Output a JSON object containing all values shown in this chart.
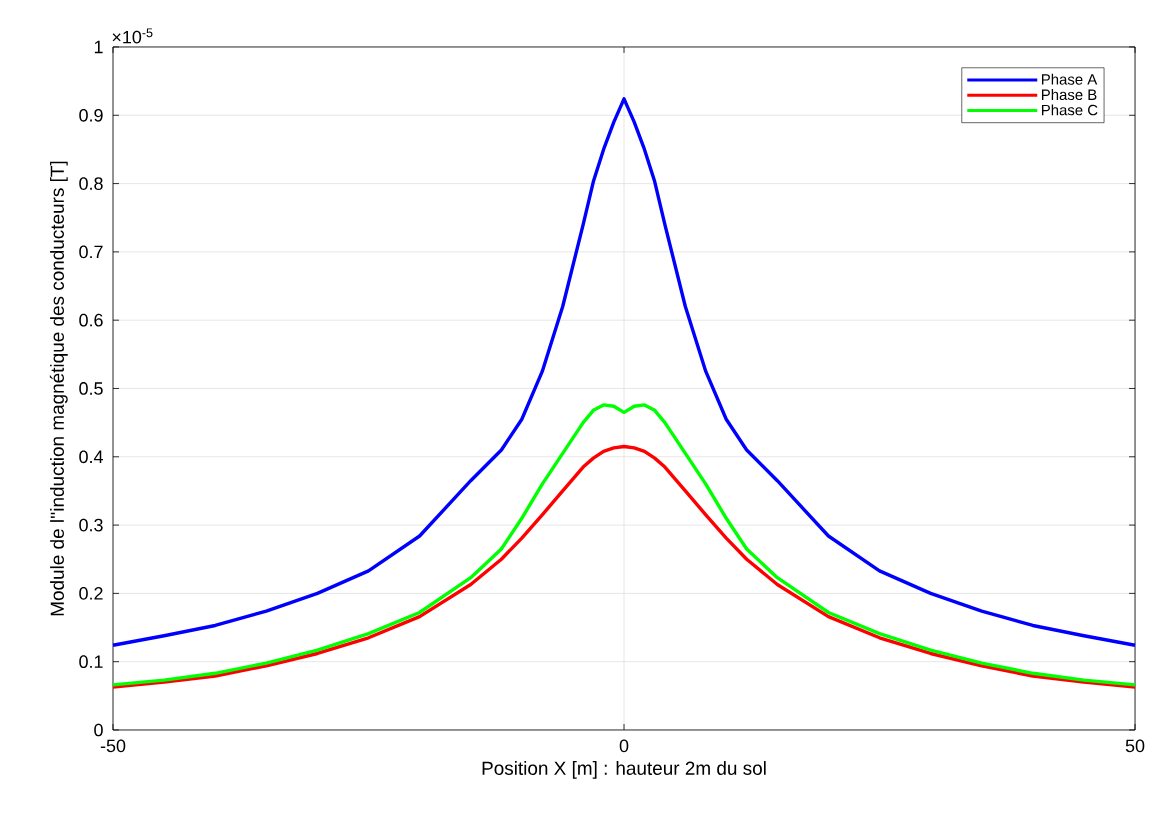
{
  "chart_data": {
    "type": "line",
    "xlabel": "Position X [m] : hauteur 2m du sol",
    "ylabel": "Module de l''induction magnétique des conducteurs [T]",
    "annotations": [
      "×10$^{-5}$"
    ],
    "x": [
      -50,
      -45,
      -40,
      -35,
      -30,
      -25,
      -20,
      -15,
      -12,
      -10,
      -8,
      -6,
      -4,
      -3,
      -2,
      -1,
      0,
      1,
      2,
      3,
      4,
      6,
      8,
      10,
      12,
      15,
      20,
      25,
      30,
      35,
      40,
      45,
      50
    ],
    "series": [
      {
        "name": "Phase A",
        "color": "#0000ff",
        "values": [
          0.124,
          0.138,
          0.153,
          0.174,
          0.2,
          0.233,
          0.284,
          0.365,
          0.41,
          0.455,
          0.525,
          0.62,
          0.74,
          0.803,
          0.85,
          0.89,
          0.924,
          0.89,
          0.85,
          0.803,
          0.74,
          0.62,
          0.525,
          0.455,
          0.41,
          0.365,
          0.284,
          0.233,
          0.2,
          0.174,
          0.153,
          0.138,
          0.124
        ]
      },
      {
        "name": "Phase B",
        "color": "#ff0000",
        "values": [
          0.063,
          0.07,
          0.079,
          0.094,
          0.112,
          0.135,
          0.166,
          0.213,
          0.25,
          0.281,
          0.315,
          0.35,
          0.385,
          0.398,
          0.408,
          0.413,
          0.415,
          0.413,
          0.408,
          0.398,
          0.385,
          0.35,
          0.315,
          0.281,
          0.25,
          0.213,
          0.166,
          0.135,
          0.112,
          0.094,
          0.079,
          0.07,
          0.063
        ]
      },
      {
        "name": "Phase C",
        "color": "#00ff00",
        "values": [
          0.066,
          0.073,
          0.083,
          0.098,
          0.117,
          0.141,
          0.172,
          0.223,
          0.265,
          0.31,
          0.36,
          0.405,
          0.45,
          0.468,
          0.476,
          0.474,
          0.465,
          0.474,
          0.476,
          0.468,
          0.45,
          0.405,
          0.36,
          0.31,
          0.265,
          0.223,
          0.172,
          0.141,
          0.117,
          0.098,
          0.083,
          0.073,
          0.066
        ]
      }
    ],
    "xlim": [
      -50,
      50
    ],
    "ylim": [
      0,
      1
    ],
    "xticks": [
      -50,
      0,
      50
    ],
    "yticks": [
      0,
      0.1,
      0.2,
      0.3,
      0.4,
      0.5,
      0.6,
      0.7,
      0.8,
      0.9,
      1
    ],
    "grid": true,
    "legend": "top right",
    "marker": "none",
    "line_style": "solid"
  }
}
